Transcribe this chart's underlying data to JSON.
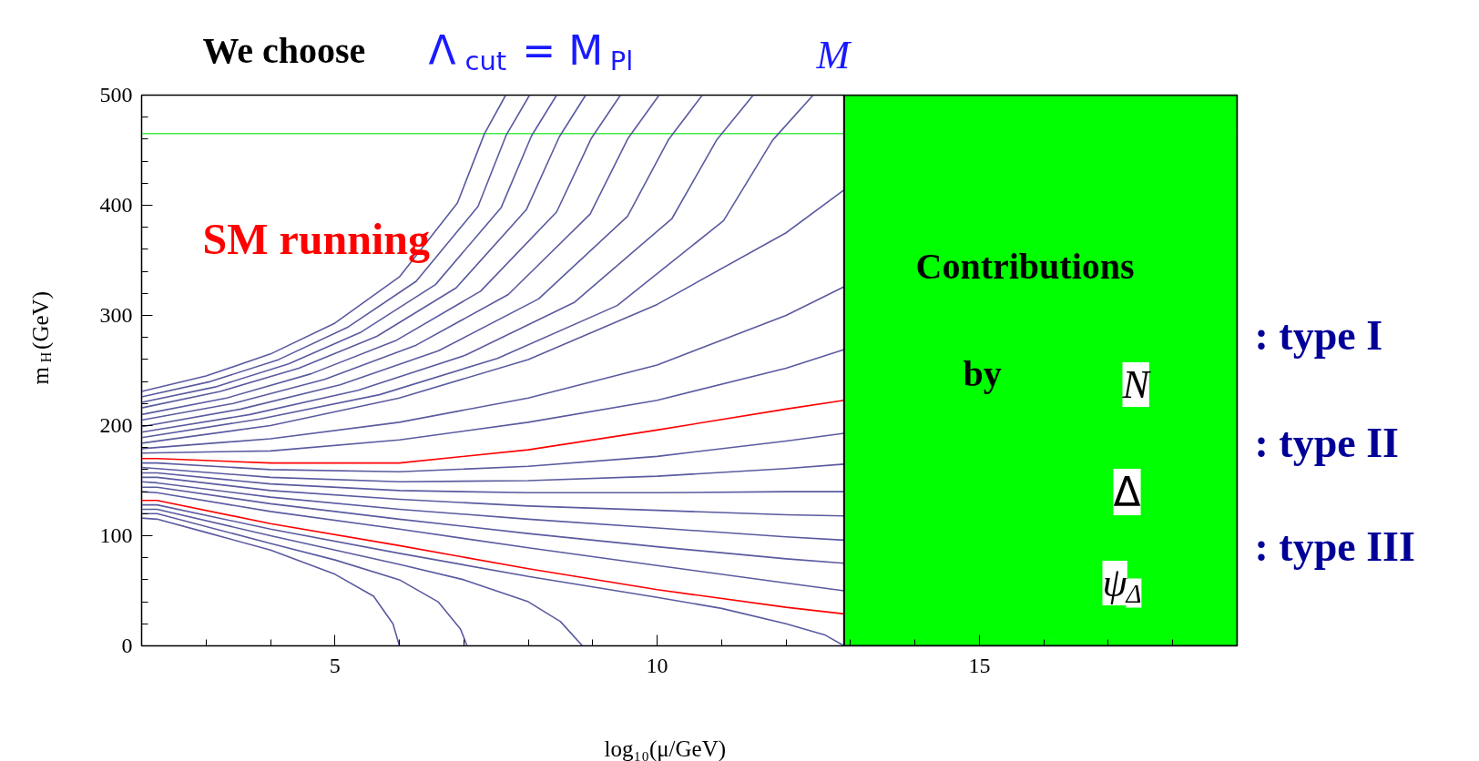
{
  "chart_data": {
    "type": "line",
    "title": "We choose",
    "xlabel": "log₁₀(μ/GeV)",
    "ylabel": "m$_{H}$(GeV)",
    "annotations": [
      "Λ$_{cut}$ = M$_{Pl}$",
      "M",
      "SM running",
      "Contributions",
      "by",
      "N",
      "Δ",
      "ψ$_{Δ}$",
      ": type I",
      ": type II",
      ": type III"
    ],
    "xlim": [
      2,
      19
    ],
    "ylim": [
      0,
      500
    ],
    "xticks": [
      {
        "value": 3,
        "label": null
      },
      {
        "value": 4,
        "label": null
      },
      5,
      {
        "value": 6,
        "label": null
      },
      {
        "value": 7,
        "label": null
      },
      {
        "value": 8,
        "label": null
      },
      {
        "value": 9,
        "label": null
      },
      10,
      {
        "value": 11,
        "label": null
      },
      {
        "value": 12,
        "label": null
      },
      {
        "value": 13,
        "label": null
      },
      {
        "value": 14,
        "label": null
      },
      15,
      {
        "value": 16,
        "label": null
      },
      {
        "value": 17,
        "label": null
      },
      {
        "value": 18,
        "label": null
      }
    ],
    "yticks": [
      0,
      {
        "value": 20,
        "label": null
      },
      {
        "value": 40,
        "label": null
      },
      {
        "value": 60,
        "label": null
      },
      {
        "value": 80,
        "label": null
      },
      100,
      {
        "value": 120,
        "label": null
      },
      {
        "value": 140,
        "label": null
      },
      {
        "value": 160,
        "label": null
      },
      {
        "value": 180,
        "label": null
      },
      200,
      {
        "value": 220,
        "label": null
      },
      {
        "value": 240,
        "label": null
      },
      {
        "value": 260,
        "label": null
      },
      {
        "value": 280,
        "label": null
      },
      300,
      {
        "value": 320,
        "label": null
      },
      {
        "value": 340,
        "label": null
      },
      {
        "value": 360,
        "label": null
      },
      {
        "value": 380,
        "label": null
      },
      400,
      {
        "value": 420,
        "label": null
      },
      {
        "value": 440,
        "label": null
      },
      {
        "value": 460,
        "label": null
      },
      {
        "value": 480,
        "label": null
      },
      500
    ],
    "ref_lines": [
      {
        "axis": "y",
        "value": 465,
        "color": "#44ee44"
      }
    ],
    "bands": [
      {
        "axis": "x",
        "from": 12.9,
        "to": 19,
        "color": "#00ff00"
      }
    ],
    "series": [
      {
        "color": "#5a5aa0",
        "x": [
          2,
          3,
          4,
          5,
          6,
          6.9,
          7.32,
          7.65
        ],
        "values": [
          231,
          245,
          265,
          293,
          335,
          402,
          465,
          500
        ]
      },
      {
        "color": "#5a5aa0",
        "x": [
          2,
          3.07,
          4.13,
          5.19,
          6.26,
          7.22,
          7.66,
          8.02
        ],
        "values": [
          226,
          240,
          260,
          289,
          331,
          399,
          464,
          500
        ]
      },
      {
        "color": "#5a5aa0",
        "x": [
          2,
          3.14,
          4.28,
          5.41,
          6.56,
          7.58,
          8.05,
          8.44
        ],
        "values": [
          221,
          235,
          256,
          285,
          328,
          398,
          463,
          500
        ]
      },
      {
        "color": "#5a5aa0",
        "x": [
          2,
          3.22,
          4.44,
          5.65,
          6.88,
          7.97,
          8.48,
          8.89
        ],
        "values": [
          216,
          231,
          252,
          281,
          325,
          396,
          462,
          500
        ]
      },
      {
        "color": "#5a5aa0",
        "x": [
          2,
          3.32,
          4.63,
          5.94,
          7.26,
          8.44,
          8.98,
          9.43
        ],
        "values": [
          210,
          225,
          247,
          277,
          322,
          394,
          461,
          500
        ]
      },
      {
        "color": "#5a5aa0",
        "x": [
          2,
          3.42,
          4.84,
          6.26,
          7.69,
          8.96,
          9.55,
          10.03
        ],
        "values": [
          205,
          220,
          242,
          273,
          319,
          392,
          461,
          500
        ]
      },
      {
        "color": "#5a5aa0",
        "x": [
          2,
          3.54,
          5.08,
          6.61,
          8.16,
          9.54,
          10.18,
          10.7
        ],
        "values": [
          199,
          215,
          237,
          268,
          315,
          390,
          460,
          500
        ]
      },
      {
        "color": "#5a5aa0",
        "x": [
          2,
          3.68,
          5.36,
          7.03,
          8.72,
          10.23,
          10.92,
          11.49
        ],
        "values": [
          194,
          210,
          232,
          264,
          312,
          388,
          459,
          500
        ]
      },
      {
        "color": "#5a5aa0",
        "x": [
          2,
          3.84,
          5.69,
          7.52,
          9.38,
          11.03,
          11.79,
          12.42
        ],
        "values": [
          189,
          206,
          228,
          261,
          309,
          386,
          459,
          500
        ]
      },
      {
        "color": "#5a5aa0",
        "x": [
          2,
          4,
          6,
          8,
          10,
          12,
          12.9
        ],
        "values": [
          184,
          200,
          225,
          260,
          310,
          375,
          414
        ]
      },
      {
        "color": "#5a5aa0",
        "x": [
          2,
          4,
          6,
          8,
          10,
          12,
          12.9
        ],
        "values": [
          179,
          188,
          203,
          225,
          255,
          300,
          326
        ]
      },
      {
        "color": "#5a5aa0",
        "x": [
          2,
          4,
          6,
          8,
          10,
          12,
          12.9
        ],
        "values": [
          175,
          177,
          187,
          203,
          223,
          252,
          269
        ]
      },
      {
        "color": "#ff0000",
        "x": [
          2,
          2.24,
          4,
          6,
          8,
          10,
          12,
          12.9
        ],
        "values": [
          170,
          170,
          166,
          166,
          178,
          196,
          215,
          223
        ]
      },
      {
        "color": "#5a5aa0",
        "x": [
          2,
          2.24,
          4,
          6,
          8,
          10,
          12,
          12.9
        ],
        "values": [
          166,
          166,
          160,
          158,
          163,
          172,
          186,
          193
        ]
      },
      {
        "color": "#5a5aa0",
        "x": [
          2,
          2.24,
          4,
          6,
          8,
          10,
          12,
          12.9
        ],
        "values": [
          162,
          161,
          153,
          149,
          150,
          154,
          161,
          165
        ]
      },
      {
        "color": "#5a5aa0",
        "x": [
          2,
          2.24,
          4,
          6,
          8,
          10,
          12,
          12.9
        ],
        "values": [
          157,
          157,
          147,
          141,
          139,
          139,
          140,
          140
        ]
      },
      {
        "color": "#5a5aa0",
        "x": [
          2,
          2.24,
          4,
          6,
          8,
          10,
          12,
          12.9
        ],
        "values": [
          153,
          153,
          141,
          133,
          127,
          123,
          119,
          118
        ]
      },
      {
        "color": "#5a5aa0",
        "x": [
          2,
          2.24,
          4,
          6,
          8,
          10,
          12,
          12.9
        ],
        "values": [
          149,
          148,
          135,
          124,
          115,
          107,
          99,
          96
        ]
      },
      {
        "color": "#5a5aa0",
        "x": [
          2,
          2.24,
          4,
          6,
          8,
          10,
          12,
          12.9
        ],
        "values": [
          144,
          144,
          129,
          115,
          102,
          90,
          79,
          75
        ]
      },
      {
        "color": "#5a5aa0",
        "x": [
          2,
          2.24,
          4,
          6,
          8,
          10,
          12,
          12.9
        ],
        "values": [
          140,
          139,
          122,
          106,
          89,
          73,
          57,
          50
        ]
      },
      {
        "color": "#ff0000",
        "x": [
          2,
          2.24,
          4,
          6,
          8,
          10,
          12,
          12.9
        ],
        "values": [
          132,
          132,
          111,
          91,
          70,
          51,
          35,
          29
        ]
      },
      {
        "color": "#5a5aa0",
        "x": [
          2,
          2.24,
          4,
          6,
          8,
          10,
          11,
          12,
          12.6,
          12.9
        ],
        "values": [
          128,
          128,
          106,
          84,
          63,
          44,
          34,
          20,
          10,
          0
        ]
      },
      {
        "color": "#5a5aa0",
        "x": [
          2,
          2.24,
          4,
          6,
          7,
          8,
          8.5,
          8.84
        ],
        "values": [
          124,
          124,
          100,
          74,
          60,
          40,
          22,
          0
        ]
      },
      {
        "color": "#5a5aa0",
        "x": [
          2,
          2.24,
          4,
          5,
          6,
          6.6,
          6.95,
          7.05
        ],
        "values": [
          120,
          120,
          93,
          78,
          60,
          40,
          15,
          0
        ]
      },
      {
        "color": "#5a5aa0",
        "x": [
          2,
          2.24,
          3,
          4,
          5,
          5.6,
          5.9,
          6.0
        ],
        "values": [
          116,
          115,
          103,
          87,
          65,
          45,
          20,
          0
        ]
      }
    ]
  }
}
